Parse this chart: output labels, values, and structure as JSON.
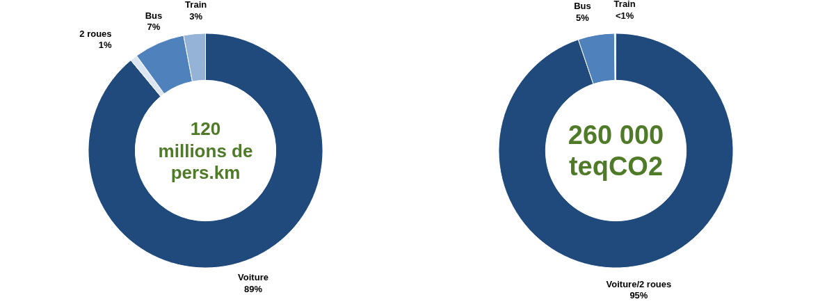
{
  "chart_data": [
    {
      "type": "donut",
      "categories": [
        "Voiture",
        "2 roues",
        "Bus",
        "Train"
      ],
      "values": [
        89,
        1,
        7,
        3
      ],
      "value_labels": [
        "89%",
        "1%",
        "7%",
        "3%"
      ],
      "colors": [
        "#214a7c",
        "#dce6f2",
        "#4f81bd",
        "#95b3d7"
      ],
      "annotations": [
        "120\nmillions de\npers.km"
      ]
    },
    {
      "type": "donut",
      "categories": [
        "Voiture/2 roues",
        "Bus",
        "Train"
      ],
      "values": [
        94.8,
        5,
        0.2
      ],
      "value_labels": [
        "95%",
        "5%",
        "<1%"
      ],
      "colors": [
        "#214a7c",
        "#4f81bd",
        "#dce6f2"
      ],
      "annotations": [
        "260 000\nteqCO2"
      ]
    }
  ]
}
